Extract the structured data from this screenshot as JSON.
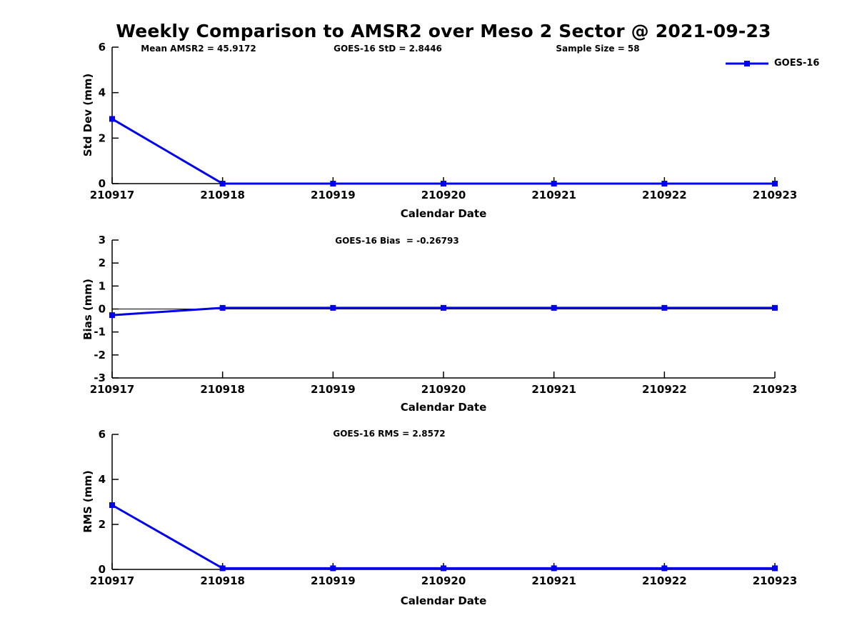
{
  "title": "Weekly Comparison to AMSR2 over Meso 2 Sector @ 2021-09-23",
  "legend": {
    "label": "GOES-16",
    "marker": "filled-square"
  },
  "colors": {
    "series": "#0000EE",
    "axis": "#000000",
    "background": "#FFFFFF",
    "text": "#000000"
  },
  "chart_data": [
    {
      "type": "line",
      "subplot": "std-dev",
      "annotations": [
        "Mean AMSR2 = 45.9172",
        "GOES-16 StD = 2.8446",
        "Sample Size = 58"
      ],
      "xlabel": "Calendar Date",
      "ylabel": "Std Dev (mm)",
      "categories": [
        "210917",
        "210918",
        "210919",
        "210920",
        "210921",
        "210922",
        "210923"
      ],
      "series": [
        {
          "name": "GOES-16",
          "values": [
            2.8446,
            0,
            0,
            0,
            0,
            0,
            0
          ]
        }
      ],
      "ylim": [
        0,
        6
      ],
      "yticks": [
        0,
        2,
        4,
        6
      ],
      "zero_line": false,
      "legend_position": "top-right"
    },
    {
      "type": "line",
      "subplot": "bias",
      "annotations": [
        "GOES-16 Bias  = -0.26793"
      ],
      "xlabel": "Calendar Date",
      "ylabel": "Bias (mm)",
      "categories": [
        "210917",
        "210918",
        "210919",
        "210920",
        "210921",
        "210922",
        "210923"
      ],
      "series": [
        {
          "name": "GOES-16",
          "values": [
            -0.26793,
            0.05,
            0.05,
            0.05,
            0.05,
            0.05,
            0.05
          ]
        }
      ],
      "ylim": [
        -3,
        3
      ],
      "yticks": [
        -3,
        -2,
        -1,
        0,
        1,
        2,
        3
      ],
      "zero_line": true
    },
    {
      "type": "line",
      "subplot": "rms",
      "annotations": [
        "GOES-16 RMS = 2.8572"
      ],
      "xlabel": "Calendar Date",
      "ylabel": "RMS (mm)",
      "categories": [
        "210917",
        "210918",
        "210919",
        "210920",
        "210921",
        "210922",
        "210923"
      ],
      "series": [
        {
          "name": "GOES-16",
          "values": [
            2.8572,
            0.05,
            0.05,
            0.05,
            0.05,
            0.05,
            0.05
          ]
        }
      ],
      "ylim": [
        0,
        6
      ],
      "yticks": [
        0,
        2,
        4,
        6
      ],
      "zero_line": false
    }
  ]
}
